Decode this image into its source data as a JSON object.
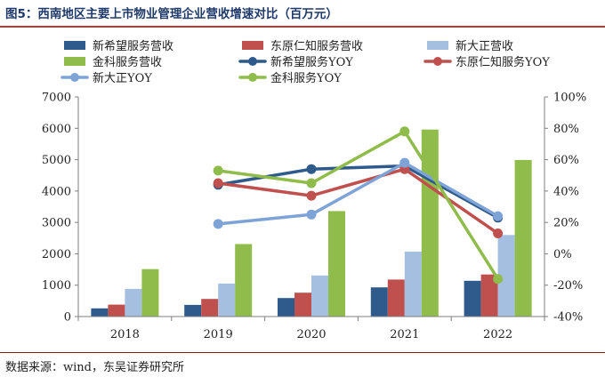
{
  "title": "图5：西南地区主要上市物业管理企业营收增速对比（百万元）",
  "source": "数据来源：wind，东吴证券研究所",
  "colors": {
    "xbw_rev": "#2e5a8c",
    "dyrz_rev": "#c0504d",
    "xdz_rev": "#a5bfe0",
    "jk_rev": "#8fbc4a",
    "xbw_yoy": "#2e5a8c",
    "dyrz_yoy": "#c0504d",
    "xdz_yoy": "#7ea3d6",
    "jk_yoy": "#8fbc4a"
  },
  "chart_data": {
    "type": "bar+line",
    "title": "西南地区主要上市物业管理企业营收增速对比（百万元）",
    "categories": [
      "2018",
      "2019",
      "2020",
      "2021",
      "2022"
    ],
    "y_left": {
      "min": 0,
      "max": 7000,
      "step": 1000,
      "ticks": [
        "0",
        "1000",
        "2000",
        "3000",
        "4000",
        "5000",
        "6000",
        "7000"
      ]
    },
    "y_right": {
      "min": -40,
      "max": 100,
      "step": 20,
      "ticks": [
        "-40%",
        "-20%",
        "0%",
        "20%",
        "40%",
        "60%",
        "80%",
        "100%"
      ]
    },
    "bar_series": [
      {
        "key": "xbw_rev",
        "name": "新希望服务营收",
        "values": [
          260,
          370,
          590,
          930,
          1140
        ]
      },
      {
        "key": "dyrz_rev",
        "name": "东原仁知服务营收",
        "values": [
          380,
          560,
          760,
          1180,
          1340
        ]
      },
      {
        "key": "xdz_rev",
        "name": "新大正营收",
        "values": [
          880,
          1050,
          1310,
          2070,
          2600
        ]
      },
      {
        "key": "jk_rev",
        "name": "金科服务营收",
        "values": [
          1510,
          2310,
          3360,
          5960,
          4990
        ]
      }
    ],
    "line_series": [
      {
        "key": "xbw_yoy",
        "name": "新希望服务YOY",
        "values": [
          null,
          44,
          54,
          56,
          23
        ]
      },
      {
        "key": "dyrz_yoy",
        "name": "东原仁知服务YOY",
        "values": [
          null,
          45,
          37,
          54,
          13
        ]
      },
      {
        "key": "xdz_yoy",
        "name": "新大正YOY",
        "values": [
          null,
          19,
          25,
          58,
          24
        ]
      },
      {
        "key": "jk_yoy",
        "name": "金科服务YOY",
        "values": [
          null,
          53,
          45,
          78,
          -16
        ]
      }
    ],
    "legend": [
      {
        "key": "xbw_rev",
        "label": "新希望服务营收",
        "kind": "bar"
      },
      {
        "key": "dyrz_rev",
        "label": "东原仁知服务营收",
        "kind": "bar"
      },
      {
        "key": "xdz_rev",
        "label": "新大正营收",
        "kind": "bar"
      },
      {
        "key": "jk_rev",
        "label": "金科服务营收",
        "kind": "bar"
      },
      {
        "key": "xbw_yoy",
        "label": "新希望服务YOY",
        "kind": "line"
      },
      {
        "key": "dyrz_yoy",
        "label": "东原仁知服务YOY",
        "kind": "line"
      },
      {
        "key": "xdz_yoy",
        "label": "新大正YOY",
        "kind": "line"
      },
      {
        "key": "jk_yoy",
        "label": "金科服务YOY",
        "kind": "line"
      }
    ],
    "legend_position": "top"
  }
}
